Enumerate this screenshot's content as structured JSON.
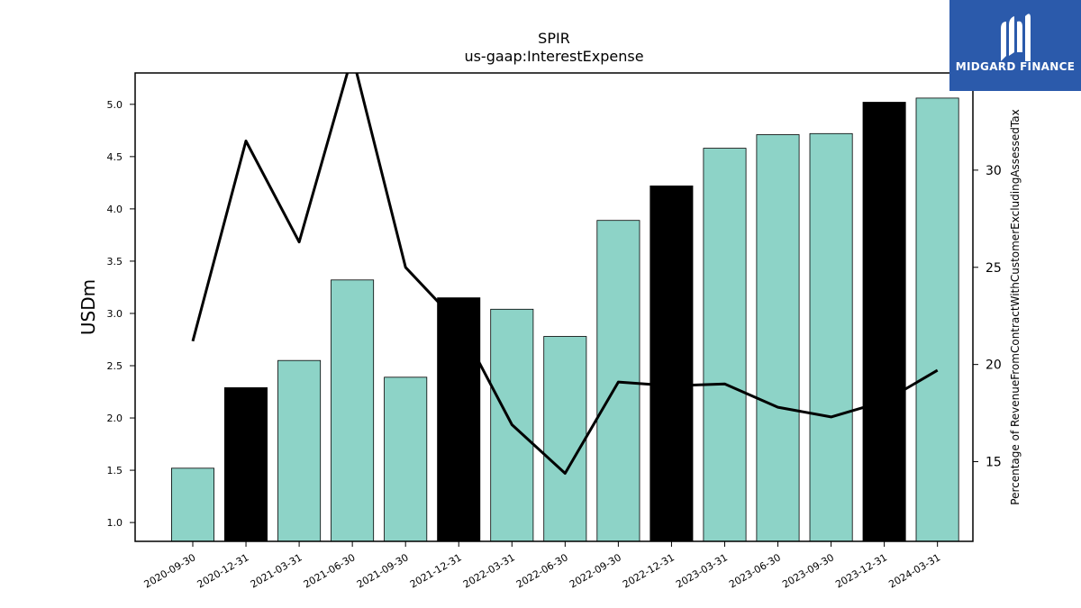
{
  "logo": {
    "name": "MIDGARD FINANCE"
  },
  "chart_data": {
    "type": "bar",
    "title": "SPIR",
    "subtitle": "us-gaap:InterestExpense",
    "ylabel": "USDm",
    "y2label": "Percentage of RevenueFromContractWithCustomerExcludingAssessedTax",
    "ylim": [
      0.82,
      5.3
    ],
    "y2lim": [
      10.9,
      35.0
    ],
    "yticks": [
      "1.0",
      "1.5",
      "2.0",
      "2.5",
      "3.0",
      "3.5",
      "4.0",
      "4.5",
      "5.0"
    ],
    "y2ticks": [
      "15",
      "20",
      "25",
      "30"
    ],
    "categories": [
      "2020-09-30",
      "2020-12-31",
      "2021-03-31",
      "2021-06-30",
      "2021-09-30",
      "2021-12-31",
      "2022-03-31",
      "2022-06-30",
      "2022-09-30",
      "2022-12-31",
      "2023-03-31",
      "2023-06-30",
      "2023-09-30",
      "2023-12-31",
      "2024-03-31"
    ],
    "series": [
      {
        "type": "bar",
        "axis": "left",
        "values": [
          1.52,
          2.29,
          2.55,
          3.32,
          2.39,
          3.15,
          3.04,
          2.78,
          3.89,
          4.22,
          4.58,
          4.71,
          4.72,
          5.02,
          5.06
        ],
        "highlight": [
          false,
          true,
          false,
          false,
          false,
          true,
          false,
          false,
          false,
          true,
          false,
          false,
          false,
          true,
          false
        ]
      },
      {
        "type": "line",
        "axis": "right",
        "values": [
          21.2,
          31.5,
          26.3,
          35.9,
          25.0,
          22.1,
          16.9,
          14.4,
          19.1,
          18.9,
          19.0,
          17.8,
          17.3,
          18.1,
          19.7
        ]
      }
    ],
    "colors": {
      "bar": "#8dd3c7",
      "highlight_bar": "#000000",
      "line": "#000000"
    },
    "grid": false,
    "legend": "none"
  }
}
